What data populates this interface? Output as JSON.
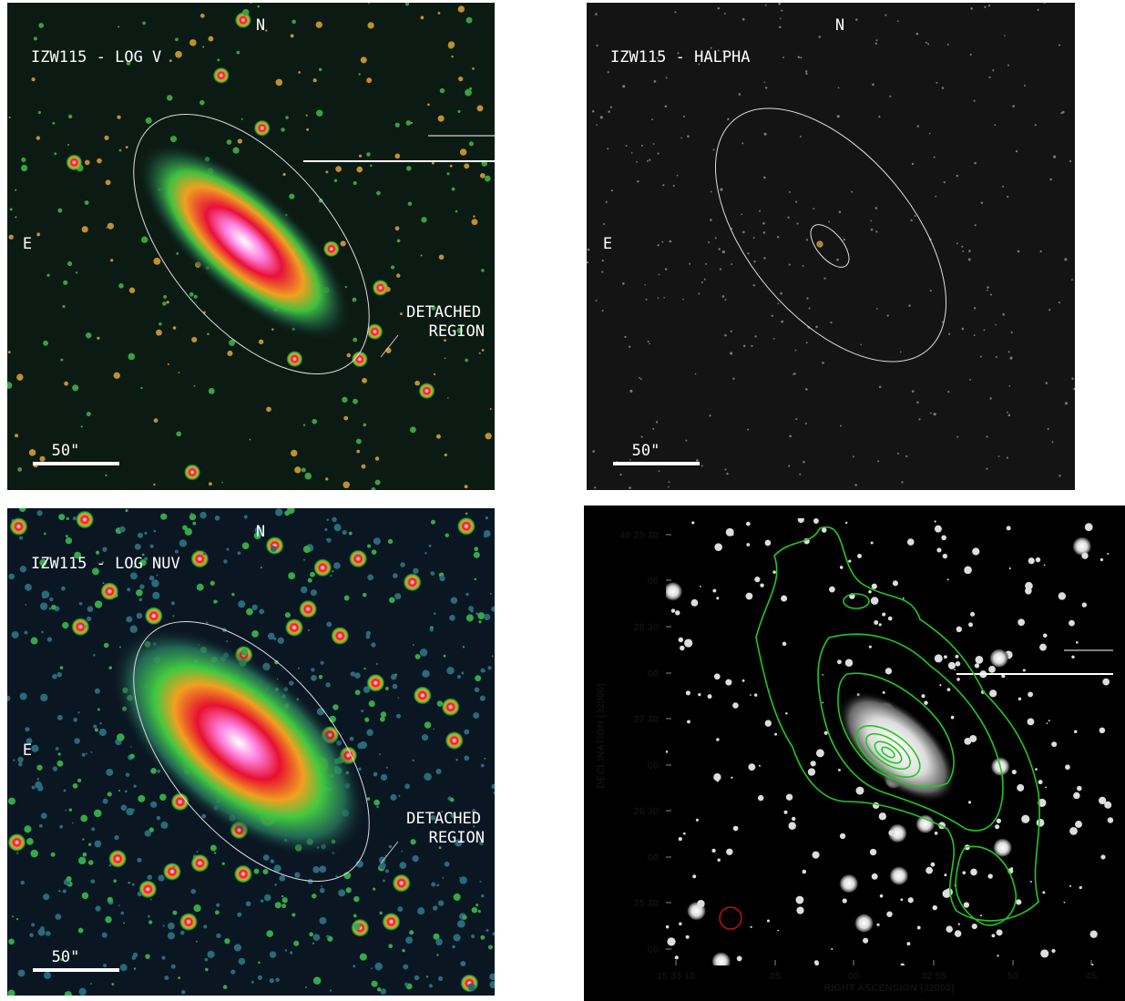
{
  "panels": [
    {
      "title": "IZW115 - LOG V",
      "north": "N",
      "east": "E",
      "scale": "50\"",
      "annotation": [
        "DETACHED",
        "REGION"
      ]
    },
    {
      "title": "IZW115 - HALPHA",
      "north": "N",
      "east": "E",
      "scale": "50\""
    },
    {
      "title": "IZW115 - LOG NUV",
      "north": "N",
      "east": "E",
      "scale": "50\"",
      "annotation": [
        "DETACHED",
        "REGION"
      ]
    },
    {
      "y_label": "DECLINATION (J2000)",
      "x_label": "RIGHT ASCENSION (J2000)",
      "y_ticks": [
        "46 29 30",
        "00",
        "28 30",
        "00",
        "27 30",
        "00",
        "26 30",
        "00",
        "25 30",
        "00"
      ],
      "x_ticks": [
        "15 33 10",
        "05",
        "00",
        "32 55",
        "50",
        "45"
      ]
    }
  ]
}
